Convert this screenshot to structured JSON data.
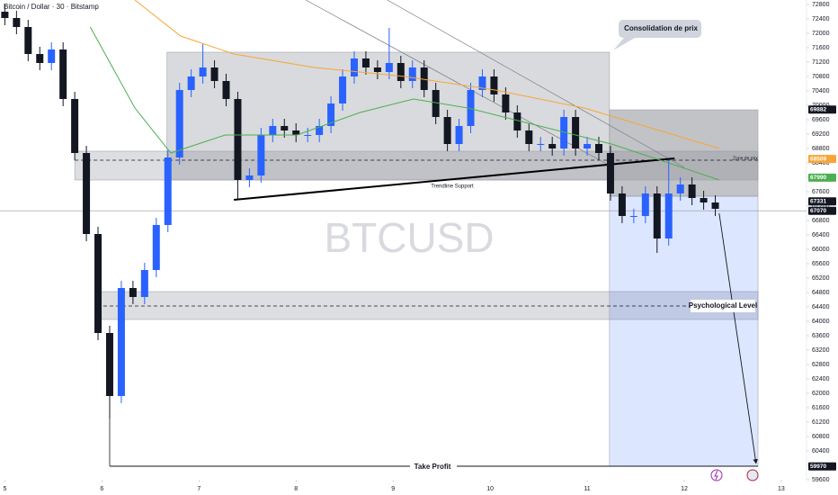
{
  "chart_data": {
    "type": "candlestick",
    "title": "Bitcoin / Dollar · 30 · Bitstamp",
    "watermark": "BTCUSD",
    "up_color": "#2962ff",
    "down_color": "#131722",
    "x": [
      5,
      5.12,
      5.24,
      5.36,
      5.48,
      5.6,
      5.72,
      5.84,
      5.96,
      6.08,
      6.2,
      6.32,
      6.44,
      6.56,
      6.68,
      6.8,
      6.92,
      7.04,
      7.16,
      7.28,
      7.4,
      7.52,
      7.64,
      7.76,
      7.88,
      8,
      8.12,
      8.24,
      8.36,
      8.48,
      8.6,
      8.72,
      8.84,
      8.96,
      9.08,
      9.2,
      9.32,
      9.44,
      9.56,
      9.68,
      9.8,
      9.92,
      10.04,
      10.16,
      10.28,
      10.4,
      10.52,
      10.64,
      10.76,
      10.88,
      11,
      11.12,
      11.24,
      11.36,
      11.48,
      11.6,
      11.72,
      11.84,
      11.96,
      12.08,
      12.2,
      12.32
    ],
    "open": [
      72600,
      72425,
      72175,
      71425,
      71175,
      71550,
      70175,
      68675,
      66425,
      63675,
      61925,
      64925,
      64675,
      65425,
      66675,
      68550,
      70425,
      70800,
      71050,
      70675,
      70175,
      67925,
      68050,
      69175,
      69425,
      69300,
      69175,
      69175,
      69425,
      70050,
      70800,
      71300,
      71050,
      70925,
      71175,
      70675,
      71050,
      70425,
      69675,
      68925,
      69425,
      70425,
      70800,
      70300,
      69800,
      69300,
      68925,
      68925,
      68800,
      69675,
      68800,
      68925,
      68675,
      67550,
      66925,
      66925,
      67550,
      66300,
      67550,
      67800,
      67425,
      67300
    ],
    "high": [
      72800,
      72625,
      72375,
      71625,
      71750,
      71750,
      70375,
      68875,
      66625,
      63875,
      65125,
      65125,
      65625,
      66875,
      68750,
      70625,
      71000,
      71700,
      71250,
      70875,
      70375,
      68250,
      69375,
      69625,
      69625,
      69500,
      69375,
      69625,
      70250,
      71000,
      71500,
      71500,
      71250,
      72150,
      71375,
      71250,
      71250,
      70625,
      69875,
      69625,
      70625,
      71000,
      71000,
      70500,
      70000,
      69500,
      69125,
      69125,
      69875,
      69875,
      69125,
      69125,
      68875,
      67750,
      67125,
      67750,
      67750,
      68500,
      68000,
      68000,
      67625,
      67500
    ],
    "low": [
      72225,
      71975,
      71225,
      70975,
      70975,
      69975,
      68475,
      66225,
      63475,
      61300,
      61725,
      64475,
      64475,
      65225,
      66475,
      68350,
      70225,
      70600,
      70475,
      69975,
      67400,
      67725,
      67850,
      68975,
      69100,
      68975,
      68975,
      68975,
      69225,
      69850,
      70600,
      70850,
      70725,
      70725,
      70475,
      70475,
      70225,
      69475,
      68725,
      68725,
      69225,
      70225,
      70100,
      69600,
      69100,
      68725,
      68725,
      68600,
      68600,
      68600,
      68600,
      68475,
      67350,
      66725,
      66725,
      66725,
      65900,
      66100,
      67350,
      67225,
      67100,
      66925
    ],
    "close": [
      72425,
      72175,
      71425,
      71175,
      71550,
      70175,
      68675,
      66425,
      63675,
      61925,
      64925,
      64675,
      65425,
      66675,
      68550,
      70425,
      70800,
      71050,
      70675,
      70175,
      67925,
      68050,
      69175,
      69425,
      69300,
      69175,
      69175,
      69425,
      70050,
      70800,
      71300,
      71050,
      70925,
      71175,
      70675,
      71050,
      70425,
      69675,
      68925,
      69425,
      70425,
      70800,
      70300,
      69800,
      69300,
      68925,
      68925,
      68800,
      69675,
      68800,
      68925,
      68675,
      67550,
      66925,
      66925,
      67550,
      66300,
      67550,
      67800,
      67425,
      67300,
      67125
    ],
    "series": [
      {
        "color": "#f7a536",
        "x": [
          6.34,
          6.81,
          7.36,
          8.19,
          9.12,
          10.05,
          10.97,
          11.9,
          12.36
        ],
        "values": [
          72925,
          71925,
          71425,
          71050,
          70800,
          70425,
          69925,
          69175,
          68800
        ]
      },
      {
        "color": "#4caf50",
        "x": [
          5.88,
          6.34,
          6.71,
          7.27,
          8.01,
          8.66,
          9.21,
          9.77,
          10.51,
          11.25,
          11.81,
          12.36
        ],
        "values": [
          72175,
          69925,
          68675,
          69175,
          69175,
          69800,
          70175,
          69925,
          69425,
          68925,
          68425,
          67925
        ]
      }
    ],
    "zones": [
      {
        "x": [
          6.67,
          11.23
        ],
        "y": [
          67925,
          71475
        ],
        "color": "rgba(120,123,134,0.28)"
      },
      {
        "x": [
          11.23,
          12.76
        ],
        "y": [
          67475,
          69875
        ],
        "color": "rgba(80,83,94,0.35)"
      },
      {
        "x": [
          5.72,
          12.76
        ],
        "y": [
          67925,
          68725
        ],
        "color": "rgba(120,123,134,0.25)"
      },
      {
        "x": [
          5.95,
          12.76
        ],
        "y": [
          64050,
          64825
        ],
        "color": "rgba(120,123,134,0.25)"
      },
      {
        "x": [
          11.23,
          12.76
        ],
        "y": [
          59975,
          67475
        ],
        "color": "rgba(41,98,255,0.16)"
      }
    ],
    "lines": [
      {
        "x": [
          4.95,
          13.26
        ],
        "y": [
          67070,
          67070
        ],
        "color": "#9598a1",
        "width": 0.6,
        "dash": false
      },
      {
        "x": [
          5.72,
          12.76
        ],
        "y": [
          68475,
          68475
        ],
        "color": "#131722",
        "width": 0.7,
        "dash": true
      },
      {
        "x": [
          5.95,
          12.76
        ],
        "y": [
          64425,
          64425
        ],
        "color": "#131722",
        "width": 0.7,
        "dash": true
      },
      {
        "x": [
          8.1,
          11.25
        ],
        "y": [
          72925,
          68300
        ],
        "color": "#787b86",
        "width": 0.7,
        "dash": false
      },
      {
        "x": [
          8.94,
          12.0
        ],
        "y": [
          72925,
          68275
        ],
        "color": "#787b86",
        "width": 0.7,
        "dash": false
      },
      {
        "x": [
          7.36,
          11.9
        ],
        "y": [
          67375,
          68525
        ],
        "color": "#000000",
        "width": 2,
        "dash": false
      },
      {
        "x": [
          6.08,
          12.76
        ],
        "y": [
          59975,
          59975
        ],
        "color": "#131722",
        "width": 1,
        "dash": false
      },
      {
        "x": [
          6.08,
          6.08
        ],
        "y": [
          61300,
          59975
        ],
        "color": "#131722",
        "width": 0.8,
        "dash": false
      },
      {
        "x": [
          12.36,
          12.74
        ],
        "y": [
          67000,
          60050
        ],
        "color": "#131722",
        "width": 0.9,
        "dash": false
      }
    ],
    "annotations": [
      "Consolidation de prix",
      "Zone de prix",
      "Trendline Support",
      "Psychological Level",
      "Take Profit"
    ],
    "price_tags": [
      {
        "value": 69882,
        "color": "#131722"
      },
      {
        "value": 68509,
        "color": "#f7a536"
      },
      {
        "value": 67990,
        "color": "#4caf50"
      },
      {
        "value": 67331,
        "color": "#131722"
      },
      {
        "value": 67070,
        "color": "#131722"
      },
      {
        "value": 59970,
        "color": "#131722"
      }
    ],
    "xlim": [
      4.95,
      13.26
    ],
    "ylim": [
      59600,
      72925
    ],
    "xticks": [
      5,
      6,
      7,
      8,
      9,
      10,
      11,
      12,
      13
    ],
    "yticks": [
      59600,
      60000,
      60400,
      60800,
      61200,
      61600,
      62000,
      62400,
      62800,
      63200,
      63600,
      64000,
      64400,
      64800,
      65200,
      65600,
      66000,
      66400,
      66800,
      67200,
      67600,
      68000,
      68400,
      68800,
      69200,
      69600,
      70000,
      70400,
      70800,
      71200,
      71600,
      72000,
      72400,
      72800
    ]
  }
}
